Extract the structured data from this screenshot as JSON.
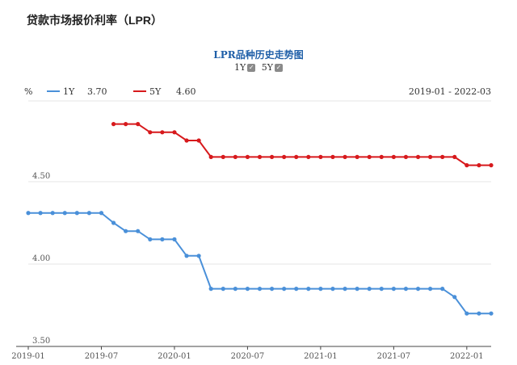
{
  "page_title": "贷款市场报价利率（LPR）",
  "chart_title": "LPR品种历史走势图",
  "toggles": [
    {
      "label": "1Y",
      "checked": true,
      "check_icon": "check-icon"
    },
    {
      "label": "5Y",
      "checked": true,
      "check_icon": "check-icon"
    }
  ],
  "header": {
    "unit": "%",
    "range": "2019-01 - 2022-03"
  },
  "colors": {
    "s1": "#4a90d9",
    "s5": "#d7191c",
    "grid": "#e6e6e6",
    "axis": "#444444"
  },
  "chart_data": {
    "type": "line",
    "x_ticks": [
      "2019-01",
      "2019-07",
      "2020-01",
      "2020-07",
      "2021-01",
      "2021-07",
      "2022-01"
    ],
    "y_ticks": [
      "4.50",
      "4.00",
      "3.50"
    ],
    "ylim": [
      3.5,
      5.0
    ],
    "grid": true,
    "legend": "top-left",
    "series": [
      {
        "name": "1Y",
        "latest": "3.70",
        "points": [
          [
            "2019-01",
            4.31
          ],
          [
            "2019-02",
            4.31
          ],
          [
            "2019-03",
            4.31
          ],
          [
            "2019-04",
            4.31
          ],
          [
            "2019-05",
            4.31
          ],
          [
            "2019-06",
            4.31
          ],
          [
            "2019-07",
            4.31
          ],
          [
            "2019-08",
            4.25
          ],
          [
            "2019-09",
            4.2
          ],
          [
            "2019-10",
            4.2
          ],
          [
            "2019-11",
            4.15
          ],
          [
            "2019-12",
            4.15
          ],
          [
            "2020-01",
            4.15
          ],
          [
            "2020-02",
            4.05
          ],
          [
            "2020-03",
            4.05
          ],
          [
            "2020-04",
            3.85
          ],
          [
            "2020-05",
            3.85
          ],
          [
            "2020-06",
            3.85
          ],
          [
            "2020-07",
            3.85
          ],
          [
            "2020-08",
            3.85
          ],
          [
            "2020-09",
            3.85
          ],
          [
            "2020-10",
            3.85
          ],
          [
            "2020-11",
            3.85
          ],
          [
            "2020-12",
            3.85
          ],
          [
            "2021-01",
            3.85
          ],
          [
            "2021-02",
            3.85
          ],
          [
            "2021-03",
            3.85
          ],
          [
            "2021-04",
            3.85
          ],
          [
            "2021-05",
            3.85
          ],
          [
            "2021-06",
            3.85
          ],
          [
            "2021-07",
            3.85
          ],
          [
            "2021-08",
            3.85
          ],
          [
            "2021-09",
            3.85
          ],
          [
            "2021-10",
            3.85
          ],
          [
            "2021-11",
            3.85
          ],
          [
            "2021-12",
            3.8
          ],
          [
            "2022-01",
            3.7
          ],
          [
            "2022-02",
            3.7
          ],
          [
            "2022-03",
            3.7
          ]
        ]
      },
      {
        "name": "5Y",
        "latest": "4.60",
        "points": [
          [
            "2019-08",
            4.85
          ],
          [
            "2019-09",
            4.85
          ],
          [
            "2019-10",
            4.85
          ],
          [
            "2019-11",
            4.8
          ],
          [
            "2019-12",
            4.8
          ],
          [
            "2020-01",
            4.8
          ],
          [
            "2020-02",
            4.75
          ],
          [
            "2020-03",
            4.75
          ],
          [
            "2020-04",
            4.65
          ],
          [
            "2020-05",
            4.65
          ],
          [
            "2020-06",
            4.65
          ],
          [
            "2020-07",
            4.65
          ],
          [
            "2020-08",
            4.65
          ],
          [
            "2020-09",
            4.65
          ],
          [
            "2020-10",
            4.65
          ],
          [
            "2020-11",
            4.65
          ],
          [
            "2020-12",
            4.65
          ],
          [
            "2021-01",
            4.65
          ],
          [
            "2021-02",
            4.65
          ],
          [
            "2021-03",
            4.65
          ],
          [
            "2021-04",
            4.65
          ],
          [
            "2021-05",
            4.65
          ],
          [
            "2021-06",
            4.65
          ],
          [
            "2021-07",
            4.65
          ],
          [
            "2021-08",
            4.65
          ],
          [
            "2021-09",
            4.65
          ],
          [
            "2021-10",
            4.65
          ],
          [
            "2021-11",
            4.65
          ],
          [
            "2021-12",
            4.65
          ],
          [
            "2022-01",
            4.6
          ],
          [
            "2022-02",
            4.6
          ],
          [
            "2022-03",
            4.6
          ]
        ]
      }
    ]
  }
}
